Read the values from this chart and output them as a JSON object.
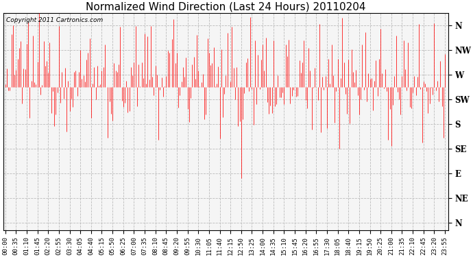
{
  "title": "Normalized Wind Direction (Last 24 Hours) 20110204",
  "copyright_text": "Copyright 2011 Cartronics.com",
  "line_color": "#ff0000",
  "background_color": "#ffffff",
  "plot_bg_color": "#f5f5f5",
  "grid_color": "#bbbbbb",
  "y_tick_labels": [
    "N",
    "NW",
    "W",
    "SW",
    "S",
    "SE",
    "E",
    "NE",
    "N"
  ],
  "y_tick_values": [
    8,
    7,
    6,
    5,
    4,
    3,
    2,
    1,
    0
  ],
  "ylim": [
    -0.3,
    8.5
  ],
  "title_fontsize": 11,
  "tick_fontsize": 6.5,
  "ytick_fontsize": 8.5,
  "copyright_fontsize": 6.5,
  "seed": 12345,
  "n_points": 288,
  "figsize": [
    6.9,
    3.75
  ],
  "dpi": 100
}
